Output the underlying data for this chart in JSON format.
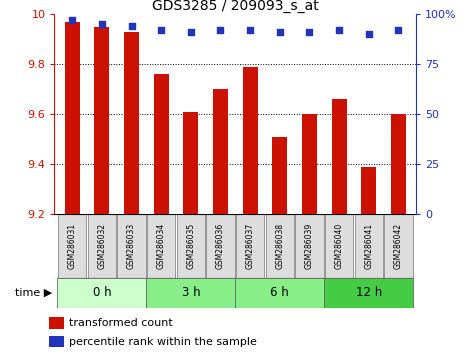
{
  "title": "GDS3285 / 209093_s_at",
  "samples": [
    "GSM286031",
    "GSM286032",
    "GSM286033",
    "GSM286034",
    "GSM286035",
    "GSM286036",
    "GSM286037",
    "GSM286038",
    "GSM286039",
    "GSM286040",
    "GSM286041",
    "GSM286042"
  ],
  "bar_values": [
    9.97,
    9.95,
    9.93,
    9.76,
    9.61,
    9.7,
    9.79,
    9.51,
    9.6,
    9.66,
    9.39,
    9.6
  ],
  "percentile_values": [
    97,
    95,
    94,
    92,
    91,
    92,
    92,
    91,
    91,
    92,
    90,
    92
  ],
  "bar_bottom": 9.2,
  "ylim_left": [
    9.2,
    10.0
  ],
  "ylim_right": [
    0,
    100
  ],
  "bar_color": "#cc1100",
  "dot_color": "#2233bb",
  "bg_color": "#ffffff",
  "group_defs": [
    {
      "label": "0 h",
      "start": 0,
      "end": 2,
      "color": "#ccffcc"
    },
    {
      "label": "3 h",
      "start": 3,
      "end": 5,
      "color": "#88ee88"
    },
    {
      "label": "6 h",
      "start": 6,
      "end": 8,
      "color": "#88ee88"
    },
    {
      "label": "12 h",
      "start": 9,
      "end": 11,
      "color": "#44cc44"
    }
  ],
  "yticks_left": [
    9.2,
    9.4,
    9.6,
    9.8,
    10.0
  ],
  "ytick_labels_left": [
    "9.2",
    "9.4",
    "9.6",
    "9.8",
    "10"
  ],
  "yticks_right": [
    0,
    25,
    50,
    75,
    100
  ],
  "ytick_labels_right": [
    "0",
    "25",
    "50",
    "75",
    "100%"
  ],
  "grid_yticks": [
    9.4,
    9.6,
    9.8
  ],
  "legend_bar_label": "transformed count",
  "legend_dot_label": "percentile rank within the sample",
  "figsize": [
    4.73,
    3.54
  ],
  "dpi": 100
}
